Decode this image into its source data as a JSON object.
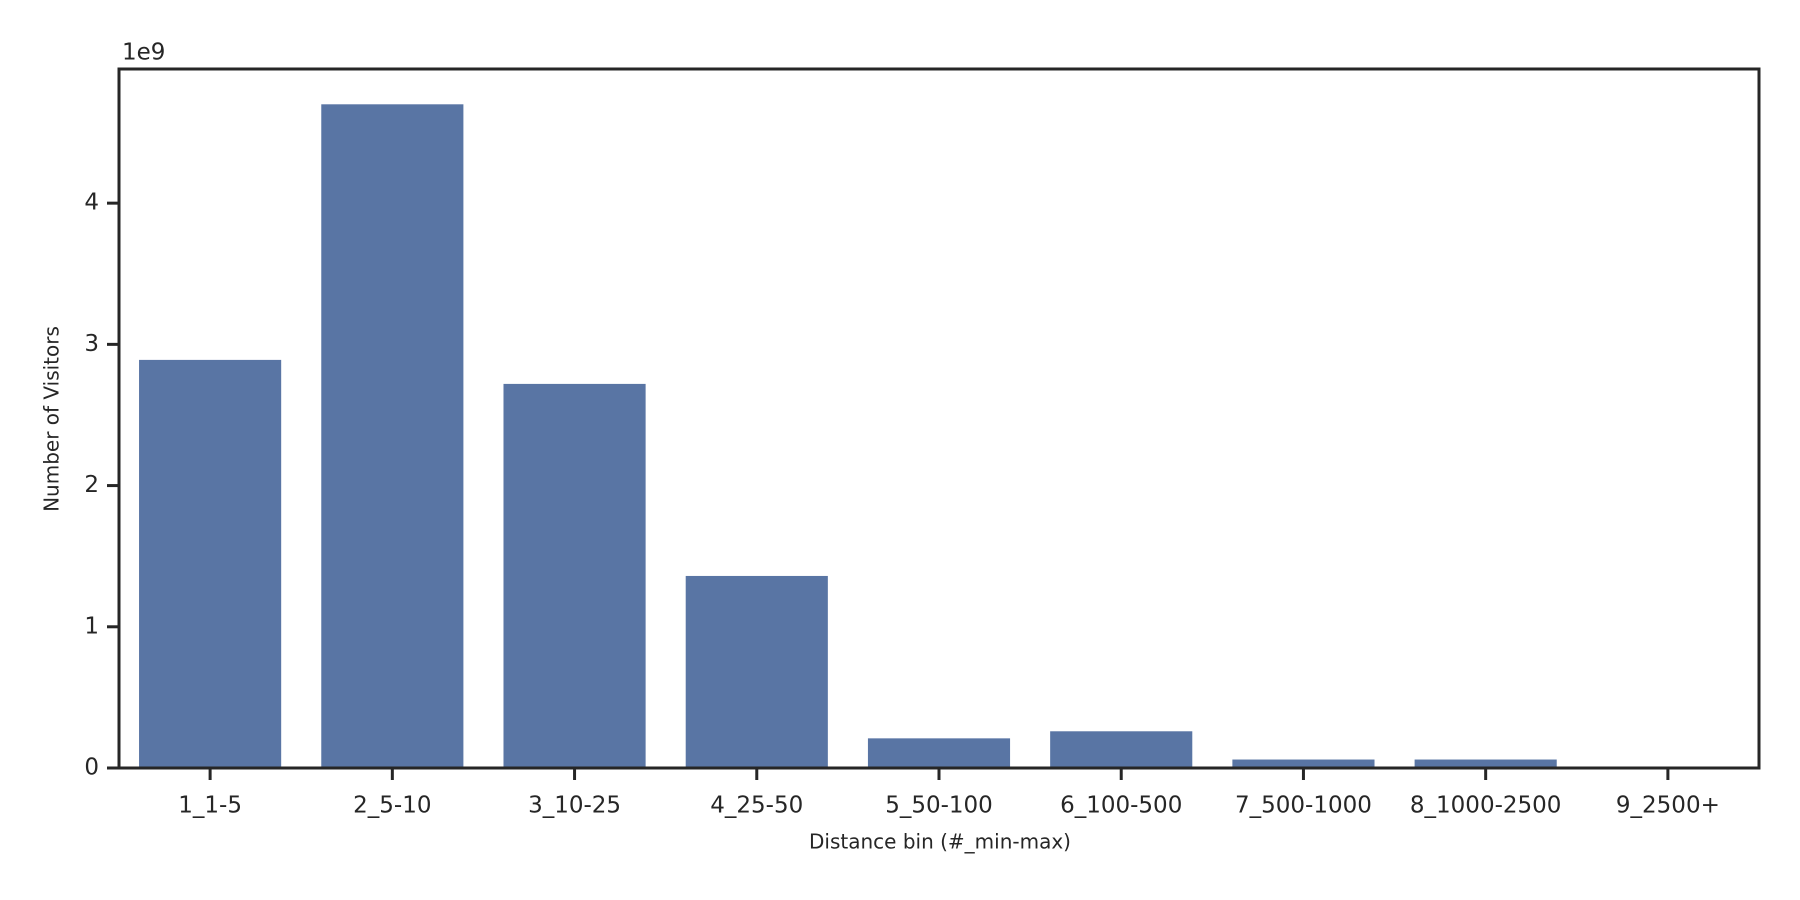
{
  "chart_data": {
    "type": "bar",
    "x_label": "Distance bin (#_min-max)",
    "y_label": "Number of Visitors",
    "y_offset_label": "1e9",
    "categories": [
      "1_1-5",
      "2_5-10",
      "3_10-25",
      "4_25-50",
      "5_50-100",
      "6_100-500",
      "7_500-1000",
      "8_1000-2500",
      "9_2500+"
    ],
    "values": [
      2.89,
      4.7,
      2.72,
      1.36,
      0.21,
      0.26,
      0.06,
      0.06,
      0.0
    ],
    "color": "#5975a4",
    "ylim": [
      0,
      4.95
    ],
    "yticks": [
      0,
      1,
      2,
      3,
      4
    ],
    "grid": false
  }
}
